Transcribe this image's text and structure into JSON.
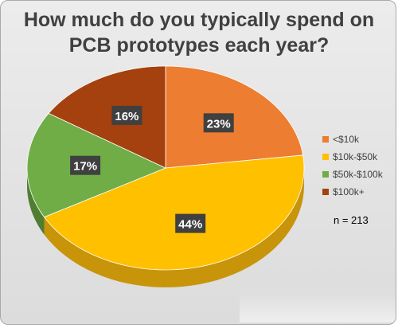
{
  "chart_data": {
    "type": "pie",
    "title_lines": [
      "How much do you typically spend on",
      "PCB prototypes each year?"
    ],
    "categories": [
      "<$10k",
      "$10k-$50k",
      "$50k-$100k",
      "$100k+"
    ],
    "values": [
      23,
      44,
      17,
      16
    ],
    "data_labels": [
      "23%",
      "44%",
      "17%",
      "16%"
    ],
    "colors": [
      "#ED7D31",
      "#FFC000",
      "#70AD47",
      "#A5410F"
    ],
    "side_colors": [
      "#B85A1E",
      "#C8940A",
      "#4F7E33",
      "#7A2F0A"
    ],
    "legend_position": "right",
    "annotation": "n = 213"
  }
}
